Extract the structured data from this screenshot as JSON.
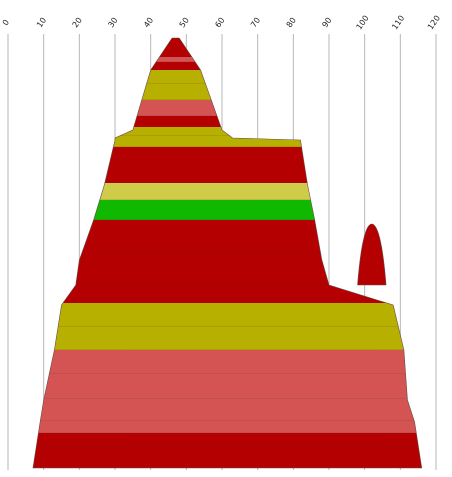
{
  "chart_data": {
    "type": "area",
    "title": "",
    "xlabel": "",
    "ylabel": "",
    "xlim": [
      0,
      120
    ],
    "x_axis_position": "top",
    "x_ticks": [
      0,
      10,
      20,
      30,
      40,
      50,
      60,
      70,
      80,
      90,
      100,
      110,
      120
    ],
    "x_tick_labels": [
      "0",
      "10",
      "20",
      "30",
      "40",
      "50",
      "60",
      "70",
      "80",
      "90",
      "100",
      "110",
      "120"
    ],
    "grid": true,
    "legend": "none",
    "colors": {
      "dark_red": "#b40000",
      "salmon": "#d45454",
      "olive": "#b8b000",
      "yellow": "#cfcc4a",
      "green": "#10b800"
    },
    "outline": [
      {
        "start": 46,
        "end": 48,
        "y": 38
      },
      {
        "start": 40,
        "end": 54,
        "y": 70
      },
      {
        "start": 35,
        "end": 60,
        "y": 130
      },
      {
        "start": 30,
        "end": 63,
        "y": 138
      },
      {
        "start": 30,
        "end": 82,
        "y": 140
      },
      {
        "start": 27,
        "end": 84,
        "y": 185
      },
      {
        "start": 24,
        "end": 86,
        "y": 220
      },
      {
        "start": 22,
        "end": 87,
        "y": 240
      },
      {
        "start": 20,
        "end": 88,
        "y": 260
      },
      {
        "start": 19,
        "end": 90,
        "y": 285
      },
      {
        "start": 15,
        "end": 108,
        "y": 305
      },
      {
        "start": 13,
        "end": 111,
        "y": 350
      },
      {
        "start": 10,
        "end": 112,
        "y": 400
      },
      {
        "start": 9,
        "end": 114,
        "y": 422
      },
      {
        "start": 7,
        "end": 116,
        "y": 468
      }
    ],
    "side_peak": {
      "start": 98,
      "end": 106,
      "top": 224,
      "base": 285
    },
    "bands": [
      {
        "top": 38,
        "bottom": 57,
        "color": "dark_red"
      },
      {
        "top": 57,
        "bottom": 62,
        "color": "salmon"
      },
      {
        "top": 62,
        "bottom": 70,
        "color": "dark_red"
      },
      {
        "top": 70,
        "bottom": 84,
        "color": "olive"
      },
      {
        "top": 84,
        "bottom": 100,
        "color": "olive"
      },
      {
        "top": 100,
        "bottom": 116,
        "color": "salmon"
      },
      {
        "top": 116,
        "bottom": 127,
        "color": "dark_red"
      },
      {
        "top": 127,
        "bottom": 136,
        "color": "olive"
      },
      {
        "top": 136,
        "bottom": 147,
        "color": "olive"
      },
      {
        "top": 147,
        "bottom": 183,
        "color": "dark_red"
      },
      {
        "top": 183,
        "bottom": 200,
        "color": "yellow"
      },
      {
        "top": 200,
        "bottom": 220,
        "color": "green"
      },
      {
        "top": 220,
        "bottom": 254,
        "color": "dark_red"
      },
      {
        "top": 254,
        "bottom": 285,
        "color": "dark_red"
      },
      {
        "top": 285,
        "bottom": 303,
        "color": "dark_red"
      },
      {
        "top": 303,
        "bottom": 327,
        "color": "olive"
      },
      {
        "top": 327,
        "bottom": 350,
        "color": "olive"
      },
      {
        "top": 350,
        "bottom": 374,
        "color": "salmon"
      },
      {
        "top": 374,
        "bottom": 399,
        "color": "salmon"
      },
      {
        "top": 399,
        "bottom": 421,
        "color": "salmon"
      },
      {
        "top": 421,
        "bottom": 433,
        "color": "salmon"
      },
      {
        "top": 433,
        "bottom": 447,
        "color": "dark_red"
      },
      {
        "top": 447,
        "bottom": 468,
        "color": "dark_red"
      }
    ]
  }
}
